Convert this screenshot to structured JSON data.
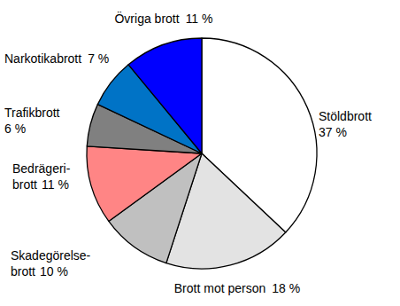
{
  "chart_data": {
    "type": "pie",
    "categories": [
      "Stöldbrott",
      "Brott mot person",
      "Skadegörelse-brott",
      "Bedrägeri-brott",
      "Trafikbrott",
      "Narkotikabrott",
      "Övriga brott"
    ],
    "values": [
      37,
      18,
      10,
      11,
      6,
      7,
      11
    ],
    "value_labels": [
      "37 %",
      "18 %",
      "10 %",
      "11 %",
      "6 %",
      "7 %",
      "11 %"
    ],
    "colors": [
      "#ffffff",
      "#e3e3e3",
      "#c0c0c0",
      "#ff8585",
      "#808080",
      "#0073c6",
      "#0000ff"
    ],
    "data_labels": true
  }
}
